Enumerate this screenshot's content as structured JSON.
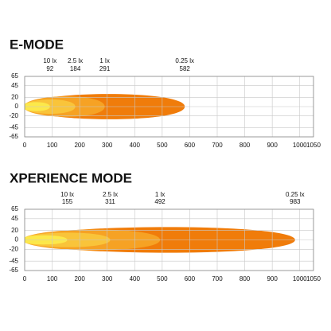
{
  "chart_data": [
    {
      "type": "beam",
      "title": "E-MODE",
      "labels": [
        "10 lx",
        "2.5 lx",
        "1 lx",
        "0.25 lx"
      ],
      "x": [
        92,
        184,
        291,
        582
      ],
      "colors": [
        "#fce84a",
        "#f9c43a",
        "#f6a224",
        "#f07c0a"
      ],
      "xlim": [
        0,
        1050
      ],
      "xticks": [
        0,
        100,
        200,
        300,
        400,
        500,
        600,
        700,
        800,
        900,
        1000,
        1050
      ],
      "ylim": [
        -65,
        65
      ],
      "yticks": [
        65,
        45,
        20,
        0,
        -20,
        -45,
        -65
      ],
      "grid": true
    },
    {
      "type": "beam",
      "title": "XPERIENCE MODE",
      "labels": [
        "10 lx",
        "2.5 lx",
        "1 lx",
        "0.25 lx"
      ],
      "x": [
        155,
        311,
        492,
        983
      ],
      "colors": [
        "#fce84a",
        "#f9c43a",
        "#f6a224",
        "#f07c0a"
      ],
      "xlim": [
        0,
        1050
      ],
      "xticks": [
        0,
        100,
        200,
        300,
        400,
        500,
        600,
        700,
        800,
        900,
        1000,
        1050
      ],
      "ylim": [
        -65,
        65
      ],
      "yticks": [
        65,
        45,
        20,
        0,
        -20,
        -45,
        -65
      ],
      "grid": true
    }
  ]
}
